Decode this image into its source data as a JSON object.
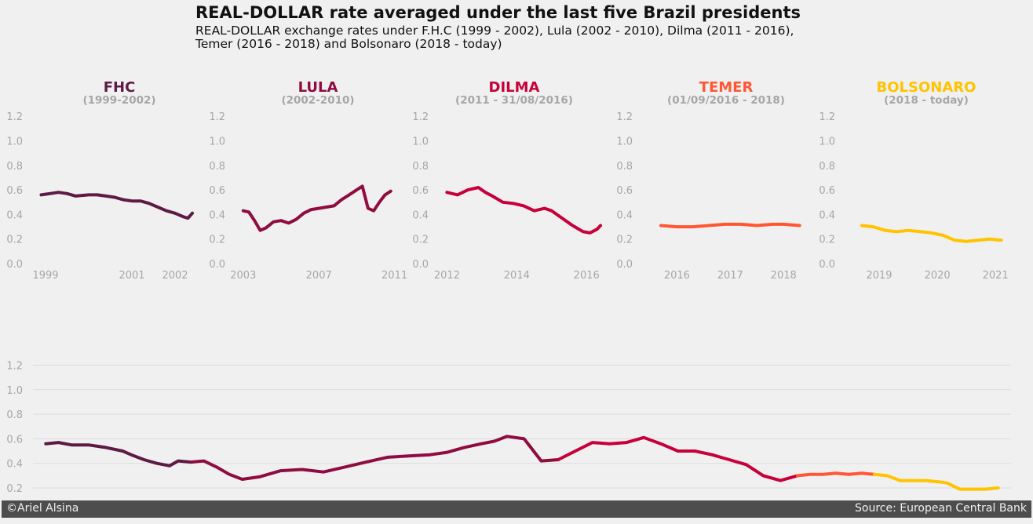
{
  "header": {
    "title": "REAL-DOLLAR rate averaged under the last five Brazil presidents",
    "subtitle_line1": "REAL-DOLLAR exchange rates under F.H.C (1999 - 2002), Lula (2002 - 2010), Dilma (2011 - 2016),",
    "subtitle_line2": "Temer (2016 - 2018) and Bolsonaro (2018 - today)"
  },
  "footer": {
    "credit": "©Ariel Alsina",
    "source": "Source: European Central Bank"
  },
  "colors": {
    "background": "#f0f0f0",
    "tick_text": "#a6a6a6",
    "grid": "#dcdcdc",
    "footer_bg": "#4d4d4d"
  },
  "chart_data": [
    {
      "type": "line",
      "title": "FHC",
      "subtitle": "(1999-2002)",
      "color": "#5c1a45",
      "ylim": [
        0,
        1.2
      ],
      "yticks": [
        "0.0",
        "0.2",
        "0.4",
        "0.6",
        "0.8",
        "1.0",
        "1.2"
      ],
      "xlim": [
        1998.8,
        2002.4
      ],
      "xticks": [
        1999,
        2001,
        2002
      ],
      "x": [
        1998.9,
        1999.1,
        1999.3,
        1999.5,
        1999.7,
        2000.0,
        2000.2,
        2000.4,
        2000.6,
        2000.8,
        2001.0,
        2001.2,
        2001.4,
        2001.6,
        2001.8,
        2002.0,
        2002.2,
        2002.3,
        2002.4
      ],
      "values": [
        0.56,
        0.57,
        0.58,
        0.57,
        0.55,
        0.56,
        0.56,
        0.55,
        0.54,
        0.52,
        0.51,
        0.51,
        0.49,
        0.46,
        0.43,
        0.41,
        0.38,
        0.37,
        0.41
      ]
    },
    {
      "type": "line",
      "title": "LULA",
      "subtitle": "(2002-2010)",
      "color": "#900c3f",
      "ylim": [
        0,
        1.2
      ],
      "yticks": [
        "0.0",
        "0.2",
        "0.4",
        "0.6",
        "0.8",
        "1.0",
        "1.2"
      ],
      "xlim": [
        2002.8,
        2011.1
      ],
      "xticks": [
        2003,
        2007,
        2011
      ],
      "x": [
        2003.0,
        2003.3,
        2003.6,
        2003.9,
        2004.2,
        2004.6,
        2005.0,
        2005.4,
        2005.8,
        2006.2,
        2006.6,
        2007.0,
        2007.4,
        2007.8,
        2008.2,
        2008.6,
        2009.0,
        2009.3,
        2009.6,
        2009.9,
        2010.2,
        2010.5,
        2010.8
      ],
      "values": [
        0.43,
        0.42,
        0.35,
        0.27,
        0.29,
        0.34,
        0.35,
        0.33,
        0.36,
        0.41,
        0.44,
        0.45,
        0.46,
        0.47,
        0.52,
        0.56,
        0.6,
        0.63,
        0.45,
        0.43,
        0.5,
        0.56,
        0.59
      ]
    },
    {
      "type": "line",
      "title": "DILMA",
      "subtitle": "(2011 - 31/08/2016)",
      "color": "#c70039",
      "ylim": [
        0,
        1.2
      ],
      "yticks": [
        "0.0",
        "0.2",
        "0.4",
        "0.6",
        "0.8",
        "1.0",
        "1.2"
      ],
      "xlim": [
        2011.9,
        2016.4
      ],
      "xticks": [
        2012,
        2014,
        2016
      ],
      "x": [
        2012.0,
        2012.3,
        2012.6,
        2012.9,
        2013.1,
        2013.3,
        2013.6,
        2013.9,
        2014.2,
        2014.5,
        2014.8,
        2015.0,
        2015.3,
        2015.6,
        2015.9,
        2016.1,
        2016.3,
        2016.4
      ],
      "values": [
        0.58,
        0.56,
        0.6,
        0.62,
        0.58,
        0.55,
        0.5,
        0.49,
        0.47,
        0.43,
        0.45,
        0.43,
        0.37,
        0.31,
        0.26,
        0.25,
        0.28,
        0.31
      ]
    },
    {
      "type": "line",
      "title": "TEMER",
      "subtitle": "(01/09/2016 - 2018)",
      "color": "#ff5733",
      "ylim": [
        0,
        1.2
      ],
      "yticks": [
        "0.0",
        "0.2",
        "0.4",
        "0.6",
        "0.8",
        "1.0",
        "1.2"
      ],
      "xlim": [
        2015.45,
        2018.35
      ],
      "xticks": [
        2016,
        2017,
        2018
      ],
      "x": [
        2015.7,
        2016.0,
        2016.3,
        2016.6,
        2016.9,
        2017.2,
        2017.5,
        2017.8,
        2018.0,
        2018.3
      ],
      "values": [
        0.31,
        0.3,
        0.3,
        0.31,
        0.32,
        0.32,
        0.31,
        0.32,
        0.32,
        0.31
      ]
    },
    {
      "type": "line",
      "title": "BOLSONARO",
      "subtitle": "(2018 - today)",
      "color": "#ffc300",
      "ylim": [
        0,
        1.2
      ],
      "yticks": [
        "0.0",
        "0.2",
        "0.4",
        "0.6",
        "0.8",
        "1.0",
        "1.2"
      ],
      "xlim": [
        2018.5,
        2021.2
      ],
      "xticks": [
        2019,
        2020,
        2021
      ],
      "x": [
        2018.7,
        2018.9,
        2019.1,
        2019.3,
        2019.5,
        2019.7,
        2019.9,
        2020.1,
        2020.3,
        2020.5,
        2020.7,
        2020.9,
        2021.1
      ],
      "values": [
        0.31,
        0.3,
        0.27,
        0.26,
        0.27,
        0.26,
        0.25,
        0.23,
        0.19,
        0.18,
        0.19,
        0.2,
        0.19
      ]
    },
    {
      "type": "line",
      "title": "",
      "ylim": [
        0.15,
        1.25
      ],
      "yticks": [
        "0.2",
        "0.4",
        "0.6",
        "0.8",
        "1.0",
        "1.2"
      ],
      "grid": true,
      "xlim": [
        1998.7,
        2021.6
      ],
      "series": [
        {
          "color": "#5c1a45",
          "x": [
            1999.0,
            1999.3,
            1999.6,
            2000.0,
            2000.4,
            2000.8,
            2001.0,
            2001.3,
            2001.6,
            2001.9,
            2002.1,
            2002.4
          ],
          "values": [
            0.56,
            0.57,
            0.55,
            0.55,
            0.53,
            0.5,
            0.47,
            0.43,
            0.4,
            0.38,
            0.42,
            0.41
          ]
        },
        {
          "color": "#900c3f",
          "x": [
            2002.4,
            2002.7,
            2003.0,
            2003.3,
            2003.6,
            2004.0,
            2004.5,
            2005.0,
            2005.5,
            2006.0,
            2006.5,
            2007.0,
            2007.5,
            2008.0,
            2008.4,
            2008.8,
            2009.2,
            2009.5,
            2009.8,
            2010.2,
            2010.6,
            2011.0
          ],
          "values": [
            0.41,
            0.42,
            0.37,
            0.31,
            0.27,
            0.29,
            0.34,
            0.35,
            0.33,
            0.37,
            0.41,
            0.45,
            0.46,
            0.47,
            0.49,
            0.53,
            0.56,
            0.58,
            0.62,
            0.6,
            0.42,
            0.43
          ]
        },
        {
          "color": "#c70039",
          "x": [
            2011.0,
            2011.4,
            2011.8,
            2012.2,
            2012.6,
            2013.0,
            2013.4,
            2013.8,
            2014.2,
            2014.6,
            2015.0,
            2015.4,
            2015.8,
            2016.2,
            2016.6
          ],
          "values": [
            0.43,
            0.5,
            0.57,
            0.56,
            0.57,
            0.61,
            0.56,
            0.5,
            0.5,
            0.47,
            0.43,
            0.39,
            0.3,
            0.26,
            0.3
          ]
        },
        {
          "color": "#ff5733",
          "x": [
            2016.6,
            2016.9,
            2017.2,
            2017.5,
            2017.8,
            2018.1,
            2018.4
          ],
          "values": [
            0.3,
            0.31,
            0.31,
            0.32,
            0.31,
            0.32,
            0.31
          ]
        },
        {
          "color": "#ffc300",
          "x": [
            2018.4,
            2018.7,
            2019.0,
            2019.3,
            2019.6,
            2019.9,
            2020.1,
            2020.4,
            2020.7,
            2021.0,
            2021.3
          ],
          "values": [
            0.31,
            0.3,
            0.26,
            0.26,
            0.26,
            0.25,
            0.24,
            0.19,
            0.19,
            0.19,
            0.2
          ]
        }
      ]
    }
  ]
}
